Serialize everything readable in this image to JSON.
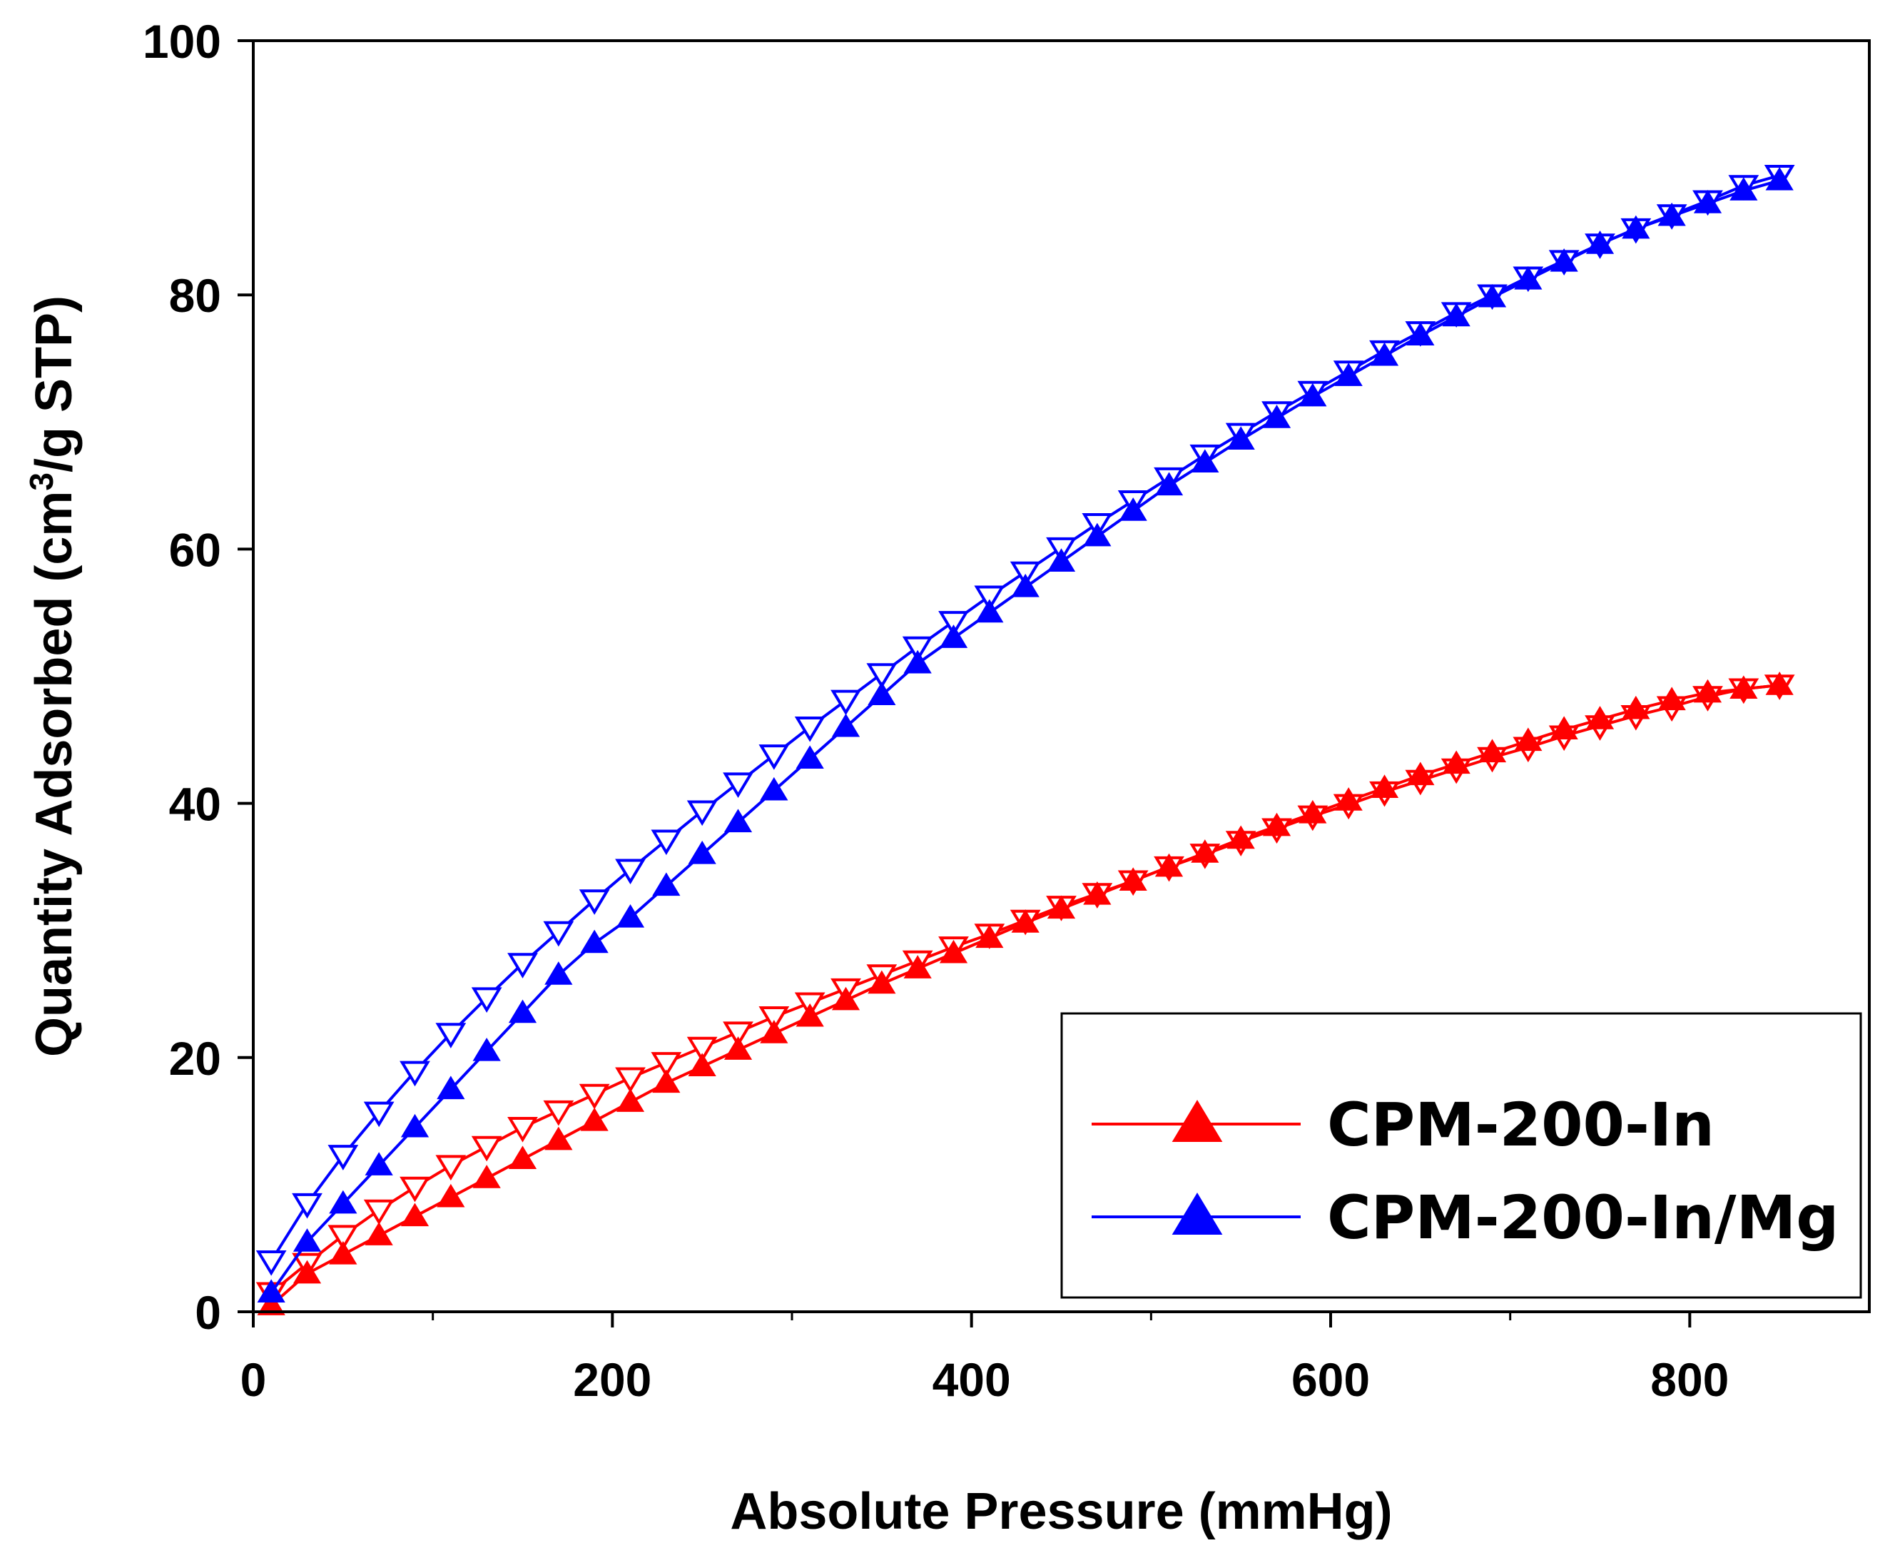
{
  "chart_data": {
    "type": "line",
    "title": "",
    "xlabel": "Absolute Pressure (mmHg)",
    "ylabel": "Quantity Adsorbed (cm³/g STP)",
    "ylabel_parts": {
      "before": "Quantity Adsorbed (cm",
      "sup": "3",
      "after": "/g STP)"
    },
    "xlim": [
      0,
      900
    ],
    "ylim": [
      0,
      100
    ],
    "xticks": [
      0,
      200,
      400,
      600,
      800
    ],
    "yticks": [
      0,
      20,
      40,
      60,
      80,
      100
    ],
    "grid": false,
    "legend_position": "bottom-right",
    "series": [
      {
        "name": "CPM-200-In",
        "color": "#ff0000",
        "marker": "filled-triangle-up",
        "adsorption": {
          "x": [
            10,
            30,
            50,
            70,
            90,
            110,
            130,
            150,
            170,
            190,
            210,
            230,
            250,
            270,
            290,
            310,
            330,
            350,
            370,
            390,
            410,
            430,
            450,
            470,
            490,
            510,
            530,
            550,
            570,
            590,
            610,
            630,
            650,
            670,
            690,
            710,
            730,
            750,
            770,
            790,
            810,
            830,
            850
          ],
          "y": [
            0.5,
            3.0,
            4.5,
            6.0,
            7.5,
            9.0,
            10.5,
            12.0,
            13.5,
            15.0,
            16.5,
            18.0,
            19.3,
            20.6,
            21.9,
            23.2,
            24.5,
            25.8,
            27.0,
            28.2,
            29.4,
            30.6,
            31.7,
            32.8,
            33.9,
            35.0,
            36.1,
            37.2,
            38.2,
            39.2,
            40.2,
            41.2,
            42.2,
            43.1,
            44.0,
            44.9,
            45.8,
            46.6,
            47.4,
            48.1,
            48.7,
            49.0,
            49.3
          ]
        },
        "desorption": {
          "x": [
            850,
            830,
            810,
            790,
            770,
            750,
            730,
            710,
            690,
            670,
            650,
            630,
            610,
            590,
            570,
            550,
            530,
            510,
            490,
            470,
            450,
            430,
            410,
            390,
            370,
            350,
            330,
            310,
            290,
            270,
            250,
            230,
            210,
            190,
            170,
            150,
            130,
            110,
            90,
            70,
            50,
            30,
            10
          ],
          "y": [
            49.3,
            49.0,
            48.4,
            47.6,
            46.9,
            46.1,
            45.3,
            44.4,
            43.6,
            42.7,
            41.8,
            40.9,
            39.9,
            39.0,
            38.0,
            37.0,
            36.0,
            35.0,
            33.9,
            32.9,
            31.9,
            30.8,
            29.7,
            28.7,
            27.6,
            26.5,
            25.4,
            24.3,
            23.2,
            22.0,
            20.8,
            19.6,
            18.4,
            17.1,
            15.8,
            14.5,
            13.0,
            11.5,
            9.8,
            8.0,
            6.0,
            3.8,
            1.5
          ]
        }
      },
      {
        "name": "CPM-200-In/Mg",
        "color": "#0000ff",
        "marker": "filled-triangle-up",
        "adsorption": {
          "x": [
            10,
            30,
            50,
            70,
            90,
            110,
            130,
            150,
            170,
            190,
            210,
            230,
            250,
            270,
            290,
            310,
            330,
            350,
            370,
            390,
            410,
            430,
            450,
            470,
            490,
            510,
            530,
            550,
            570,
            590,
            610,
            630,
            650,
            670,
            690,
            710,
            730,
            750,
            770,
            790,
            810,
            830,
            850
          ],
          "y": [
            1.5,
            5.5,
            8.5,
            11.5,
            14.5,
            17.5,
            20.5,
            23.5,
            26.5,
            29.0,
            31.0,
            33.5,
            36.0,
            38.5,
            41.0,
            43.5,
            46.0,
            48.5,
            51.0,
            53.0,
            55.0,
            57.0,
            59.0,
            61.0,
            63.0,
            65.0,
            66.8,
            68.6,
            70.3,
            72.0,
            73.6,
            75.2,
            76.8,
            78.3,
            79.8,
            81.2,
            82.6,
            84.0,
            85.2,
            86.2,
            87.2,
            88.2,
            89.0
          ]
        },
        "desorption": {
          "x": [
            850,
            830,
            810,
            790,
            770,
            750,
            730,
            710,
            690,
            670,
            650,
            630,
            610,
            590,
            570,
            550,
            530,
            510,
            490,
            470,
            450,
            430,
            410,
            390,
            370,
            350,
            330,
            310,
            290,
            270,
            250,
            230,
            210,
            190,
            170,
            150,
            130,
            110,
            90,
            70,
            50,
            30,
            10
          ],
          "y": [
            89.4,
            88.6,
            87.4,
            86.3,
            85.2,
            84.0,
            82.7,
            81.4,
            80.0,
            78.6,
            77.1,
            75.6,
            74.0,
            72.4,
            70.8,
            69.1,
            67.4,
            65.6,
            63.8,
            62.0,
            60.1,
            58.2,
            56.3,
            54.3,
            52.3,
            50.2,
            48.1,
            46.0,
            43.8,
            41.6,
            39.4,
            37.1,
            34.8,
            32.4,
            29.9,
            27.4,
            24.7,
            21.9,
            18.9,
            15.7,
            12.3,
            8.5,
            4.0
          ]
        }
      }
    ]
  }
}
